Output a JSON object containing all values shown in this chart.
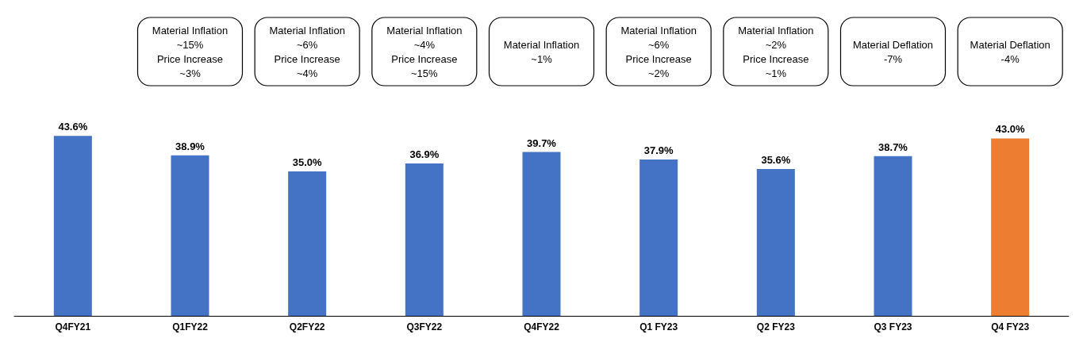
{
  "chart_data": {
    "type": "bar",
    "categories": [
      "Q4FY21",
      "Q1FY22",
      "Q2FY22",
      "Q3FY22",
      "Q4FY22",
      "Q1 FY23",
      "Q2 FY23",
      "Q3 FY23",
      "Q4 FY23"
    ],
    "values": [
      43.6,
      38.9,
      35.0,
      36.9,
      39.7,
      37.9,
      35.6,
      38.7,
      43.0
    ],
    "value_labels": [
      "43.6%",
      "38.9%",
      "35.0%",
      "36.9%",
      "39.7%",
      "37.9%",
      "35.6%",
      "38.7%",
      "43.0%"
    ],
    "colors": [
      "#4472c4",
      "#4472c4",
      "#4472c4",
      "#4472c4",
      "#4472c4",
      "#4472c4",
      "#4472c4",
      "#4472c4",
      "#ed7d31"
    ],
    "annotations": [
      "Material Inflation\n~15%\nPrice Increase\n~3%",
      "Material Inflation\n~6%\nPrice Increase\n~4%",
      "Material Inflation\n~4%\nPrice Increase\n~15%",
      "Material Inflation\n~1%",
      "Material Inflation\n~6%\nPrice Increase\n~2%",
      "Material Inflation\n~2%\nPrice Increase\n~1%",
      "Material Deflation\n-7%",
      "Material Deflation\n-4%"
    ]
  }
}
